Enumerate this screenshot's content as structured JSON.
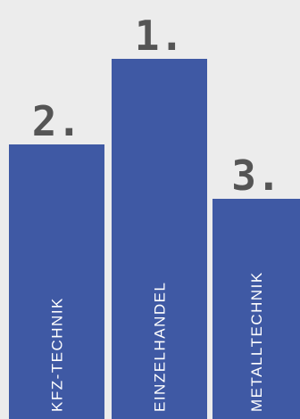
{
  "chart_data": {
    "type": "bar",
    "categories": [
      "KFZ-TECHNIK",
      "EINZELHANDEL",
      "METALLTECHNIK"
    ],
    "ranks": [
      "2.",
      "1.",
      "3."
    ],
    "values": [
      2,
      1,
      3
    ],
    "colors": {
      "bar": "#3f59a4",
      "rank_text": "#555555",
      "category_text": "#ffffff",
      "background": "#ececec"
    }
  }
}
